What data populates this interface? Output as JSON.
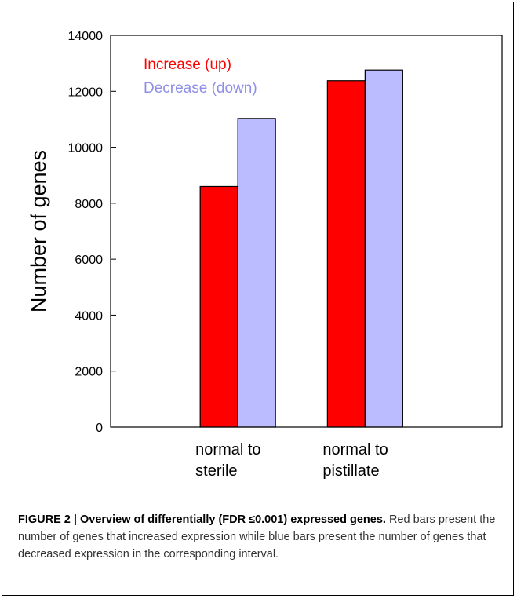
{
  "figure": {
    "caption_title": "FIGURE 2 | Overview of differentially (FDR ≤0.001) expressed genes.",
    "caption_text": " Red bars present the number of genes that increased expression while blue bars present the number of genes that decreased expression in the corresponding interval."
  },
  "chart_data": {
    "type": "bar",
    "title": "",
    "xlabel": "",
    "ylabel": "Number of genes",
    "ylim": [
      0,
      14000
    ],
    "yticks": [
      0,
      2000,
      4000,
      6000,
      8000,
      10000,
      12000,
      14000
    ],
    "categories": [
      [
        "normal to",
        "sterile"
      ],
      [
        "normal to",
        "pistillate"
      ]
    ],
    "series": [
      {
        "name": "Increase (up)",
        "color": "#ff0000",
        "values": [
          8600,
          12380
        ]
      },
      {
        "name": "Decrease (down)",
        "color": "#bbbbff",
        "values": [
          11030,
          12760
        ]
      }
    ],
    "legend_position": "top-left",
    "grid": false
  }
}
